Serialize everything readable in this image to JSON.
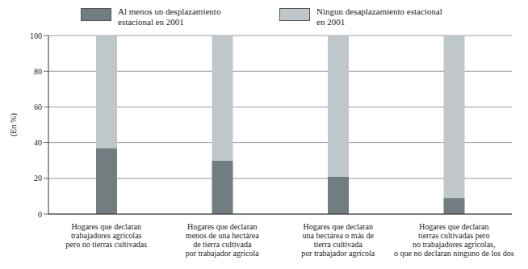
{
  "chart_data": {
    "type": "bar",
    "stacked": true,
    "y_label": "(En %)",
    "categories": [
      "Hogares que declaran\ntrabajadores agrícolas\npero no tierras cultivadas",
      "Hogares que declaran\nmenos de una hectárea\nde tierra cultivada\npor trabajador agrícola",
      "Hogares que declaran\nuna hectárea o más de\ntierra cultivada\npor trabajador agrícola",
      "Hogares que declaran\ntierras cultivadas pero\nno trabajadores agrícolas,\no que no declaran ninguno de los dos"
    ],
    "series": [
      {
        "name": "Al menos un desplazamiento estacional en 2001",
        "color": "#717d80",
        "values": [
          37,
          30,
          21,
          9
        ]
      },
      {
        "name": "Ningun desaplazamiento estacional en 2001",
        "color": "#bfc7cb",
        "values": [
          63,
          70,
          79,
          91
        ]
      }
    ],
    "ylim": [
      0,
      100
    ],
    "yticks": [
      0,
      20,
      40,
      60,
      80,
      100
    ],
    "grid": true,
    "legend": "top"
  }
}
